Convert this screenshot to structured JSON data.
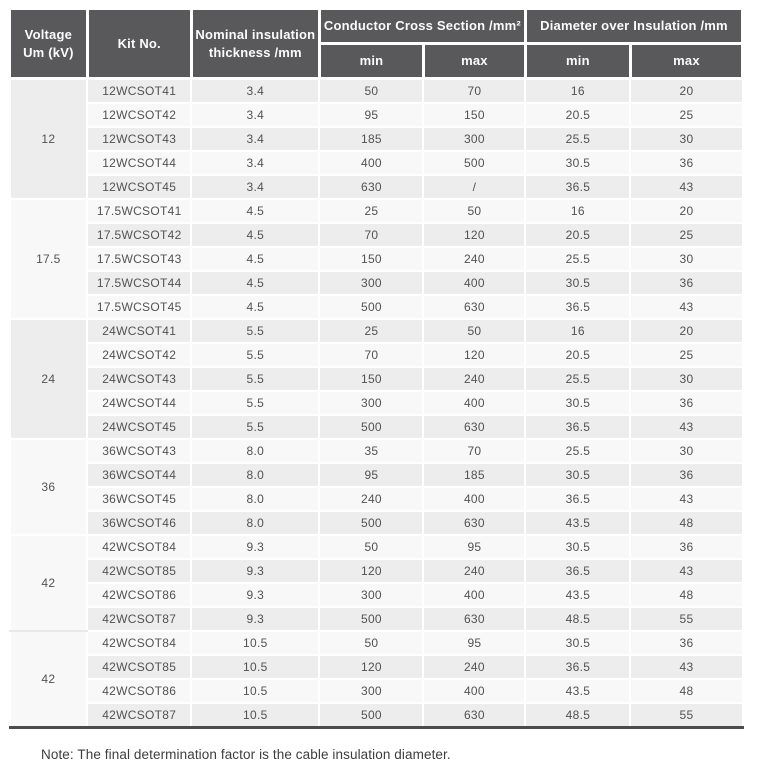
{
  "table": {
    "header": {
      "voltage_line1": "Voltage",
      "voltage_line2": "Um (kV)",
      "kit_no": "Kit No.",
      "thickness_line1": "Nominal insulation",
      "thickness_line2": "thickness /mm",
      "conductor_cross_section": "Conductor Cross Section /mm²",
      "diameter_over_insulation": "Diameter over Insulation /mm",
      "min": "min",
      "max": "max"
    },
    "groups": [
      {
        "voltage": "12",
        "rows": [
          [
            "12WCSOT41",
            "3.4",
            "50",
            "70",
            "16",
            "20"
          ],
          [
            "12WCSOT42",
            "3.4",
            "95",
            "150",
            "20.5",
            "25"
          ],
          [
            "12WCSOT43",
            "3.4",
            "185",
            "300",
            "25.5",
            "30"
          ],
          [
            "12WCSOT44",
            "3.4",
            "400",
            "500",
            "30.5",
            "36"
          ],
          [
            "12WCSOT45",
            "3.4",
            "630",
            "/",
            "36.5",
            "43"
          ]
        ]
      },
      {
        "voltage": "17.5",
        "rows": [
          [
            "17.5WCSOT41",
            "4.5",
            "25",
            "50",
            "16",
            "20"
          ],
          [
            "17.5WCSOT42",
            "4.5",
            "70",
            "120",
            "20.5",
            "25"
          ],
          [
            "17.5WCSOT43",
            "4.5",
            "150",
            "240",
            "25.5",
            "30"
          ],
          [
            "17.5WCSOT44",
            "4.5",
            "300",
            "400",
            "30.5",
            "36"
          ],
          [
            "17.5WCSOT45",
            "4.5",
            "500",
            "630",
            "36.5",
            "43"
          ]
        ]
      },
      {
        "voltage": "24",
        "rows": [
          [
            "24WCSOT41",
            "5.5",
            "25",
            "50",
            "16",
            "20"
          ],
          [
            "24WCSOT42",
            "5.5",
            "70",
            "120",
            "20.5",
            "25"
          ],
          [
            "24WCSOT43",
            "5.5",
            "150",
            "240",
            "25.5",
            "30"
          ],
          [
            "24WCSOT44",
            "5.5",
            "300",
            "400",
            "30.5",
            "36"
          ],
          [
            "24WCSOT45",
            "5.5",
            "500",
            "630",
            "36.5",
            "43"
          ]
        ]
      },
      {
        "voltage": "36",
        "rows": [
          [
            "36WCSOT43",
            "8.0",
            "35",
            "70",
            "25.5",
            "30"
          ],
          [
            "36WCSOT44",
            "8.0",
            "95",
            "185",
            "30.5",
            "36"
          ],
          [
            "36WCSOT45",
            "8.0",
            "240",
            "400",
            "36.5",
            "43"
          ],
          [
            "36WCSOT46",
            "8.0",
            "500",
            "630",
            "43.5",
            "48"
          ]
        ]
      },
      {
        "voltage": "42",
        "rows": [
          [
            "42WCSOT84",
            "9.3",
            "50",
            "95",
            "30.5",
            "36"
          ],
          [
            "42WCSOT85",
            "9.3",
            "120",
            "240",
            "36.5",
            "43"
          ],
          [
            "42WCSOT86",
            "9.3",
            "300",
            "400",
            "43.5",
            "48"
          ],
          [
            "42WCSOT87",
            "9.3",
            "500",
            "630",
            "48.5",
            "55"
          ]
        ]
      },
      {
        "voltage": "42",
        "rows": [
          [
            "42WCSOT84",
            "10.5",
            "50",
            "95",
            "30.5",
            "36"
          ],
          [
            "42WCSOT85",
            "10.5",
            "120",
            "240",
            "36.5",
            "43"
          ],
          [
            "42WCSOT86",
            "10.5",
            "300",
            "400",
            "43.5",
            "48"
          ],
          [
            "42WCSOT87",
            "10.5",
            "500",
            "630",
            "48.5",
            "55"
          ]
        ]
      }
    ]
  },
  "note": "Note: The final determination factor is the cable insulation diameter.",
  "colors": {
    "header_bg": "#59585a",
    "header_text": "#fbfbfb",
    "row_odd_bg": "#ededed",
    "row_even_bg": "#f8f8f8",
    "voltage_col_bg": "#e9e9e9",
    "cell_text": "#525256",
    "bottom_rule": "#4c4c4e"
  }
}
